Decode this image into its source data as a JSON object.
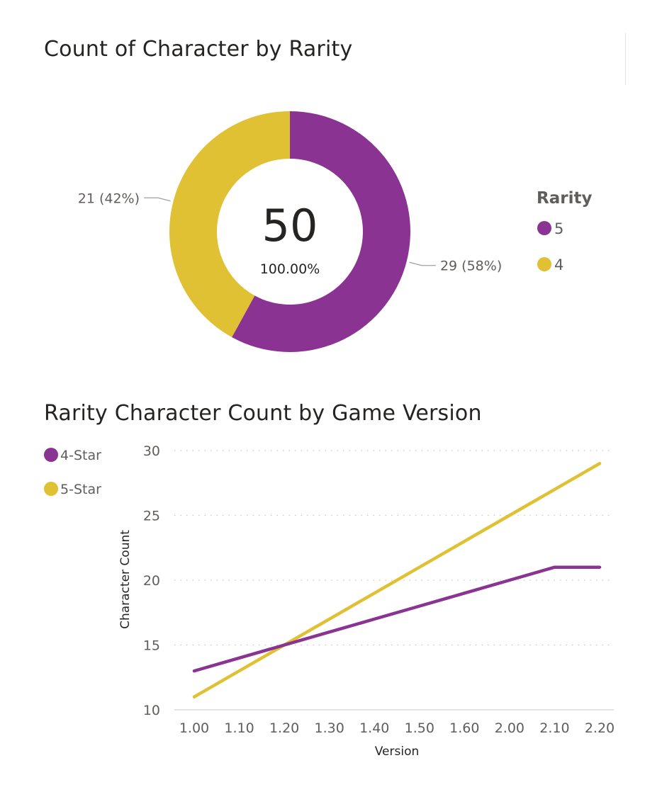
{
  "chart_data": [
    {
      "type": "pie",
      "title": "Count of Character by Rarity",
      "center_value": "50",
      "center_percent": "100.00%",
      "legend_title": "Rarity",
      "legend_position": "right",
      "slices": [
        {
          "name": "5",
          "value": 29,
          "label": "29 (58%)",
          "color": "#8a3392"
        },
        {
          "name": "4",
          "value": 21,
          "label": "21 (42%)",
          "color": "#e0c133"
        }
      ]
    },
    {
      "type": "line",
      "title": "Rarity Character Count by Game Version",
      "xlabel": "Version",
      "ylabel": "Character Count",
      "legend_position": "left",
      "grid": true,
      "ylim": [
        10,
        30
      ],
      "yticks": [
        "10",
        "15",
        "20",
        "25",
        "30"
      ],
      "categories": [
        "1.00",
        "1.10",
        "1.20",
        "1.30",
        "1.40",
        "1.50",
        "1.60",
        "2.00",
        "2.10",
        "2.20"
      ],
      "series": [
        {
          "name": "4-Star",
          "color": "#8a3392",
          "values": [
            13,
            14,
            15,
            16,
            17,
            18,
            19,
            20,
            21,
            21
          ]
        },
        {
          "name": "5-Star",
          "color": "#e0c133",
          "values": [
            11,
            13,
            15,
            17,
            19,
            21,
            23,
            25,
            27,
            29
          ]
        }
      ]
    }
  ]
}
